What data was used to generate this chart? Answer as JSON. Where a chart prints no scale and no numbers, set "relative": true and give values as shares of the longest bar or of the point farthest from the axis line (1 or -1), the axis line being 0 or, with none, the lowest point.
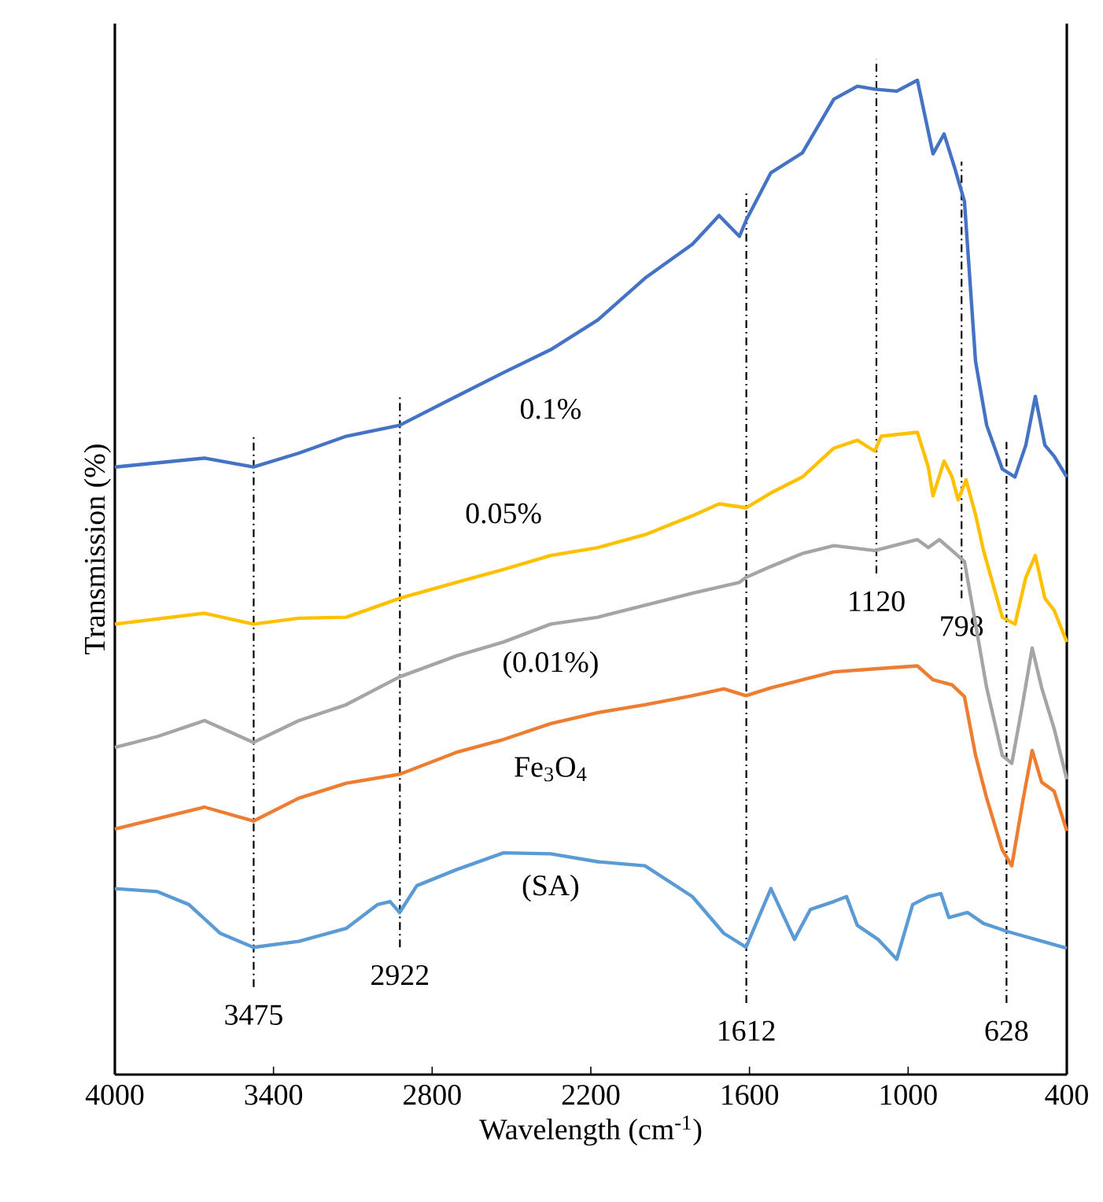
{
  "chart_data": {
    "type": "line",
    "relative": true,
    "xlabel": "Wavelength (cm$^{-1}$)",
    "ylabel": "Transmission (%)",
    "xlim": [
      4000,
      400
    ],
    "xticks": [
      4000,
      3400,
      2800,
      2200,
      1600,
      1000,
      400
    ],
    "tick_labels": "x",
    "series": [
      {
        "name": "0.1%",
        "color": "#4472c4",
        "x": [
          4000,
          3661,
          3476,
          3304,
          3125,
          2923,
          2709,
          2530,
          2352,
          2173,
          1995,
          1816,
          1715,
          1638,
          1613,
          1519,
          1400,
          1281,
          1192,
          1126,
          1043,
          965,
          906,
          864,
          823,
          787,
          745,
          703,
          644,
          596,
          555,
          519,
          483,
          448,
          400
        ],
        "values": [
          0.611,
          0.62,
          0.611,
          0.625,
          0.642,
          0.653,
          0.682,
          0.706,
          0.729,
          0.759,
          0.801,
          0.835,
          0.864,
          0.843,
          0.859,
          0.907,
          0.927,
          0.981,
          0.994,
          0.991,
          0.989,
          1.0,
          0.926,
          0.946,
          0.911,
          0.878,
          0.717,
          0.653,
          0.609,
          0.601,
          0.633,
          0.682,
          0.633,
          0.622,
          0.601
        ]
      },
      {
        "name": "0.05%",
        "color": "#ffc000",
        "x": [
          4000,
          3661,
          3476,
          3304,
          3125,
          2923,
          2709,
          2530,
          2352,
          2173,
          1995,
          1816,
          1715,
          1613,
          1519,
          1400,
          1281,
          1192,
          1126,
          1102,
          965,
          924,
          906,
          864,
          834,
          811,
          781,
          745,
          715,
          644,
          596,
          555,
          519,
          483,
          448,
          400
        ],
        "values": [
          0.453,
          0.464,
          0.453,
          0.459,
          0.46,
          0.479,
          0.495,
          0.508,
          0.522,
          0.53,
          0.543,
          0.562,
          0.574,
          0.57,
          0.585,
          0.601,
          0.63,
          0.638,
          0.627,
          0.642,
          0.646,
          0.611,
          0.582,
          0.617,
          0.601,
          0.578,
          0.598,
          0.563,
          0.527,
          0.46,
          0.453,
          0.5,
          0.522,
          0.479,
          0.467,
          0.435
        ]
      },
      {
        "name": "(0.01%)",
        "color": "#a5a5a5",
        "x": [
          4000,
          3839,
          3661,
          3476,
          3304,
          3125,
          2923,
          2709,
          2530,
          2352,
          2173,
          1995,
          1816,
          1638,
          1613,
          1519,
          1400,
          1281,
          1126,
          965,
          924,
          882,
          834,
          787,
          745,
          703,
          644,
          608,
          567,
          531,
          495,
          448,
          400
        ],
        "values": [
          0.329,
          0.34,
          0.356,
          0.334,
          0.356,
          0.372,
          0.4,
          0.421,
          0.435,
          0.453,
          0.46,
          0.472,
          0.484,
          0.495,
          0.5,
          0.511,
          0.524,
          0.532,
          0.527,
          0.538,
          0.53,
          0.538,
          0.527,
          0.516,
          0.453,
          0.389,
          0.321,
          0.313,
          0.373,
          0.429,
          0.389,
          0.348,
          0.297
        ]
      },
      {
        "name": "Fe$_{3}$O$_{4}$",
        "color": "#ed7d31",
        "x": [
          4000,
          3661,
          3476,
          3304,
          3125,
          2923,
          2709,
          2530,
          2352,
          2173,
          1995,
          1816,
          1697,
          1613,
          1519,
          1400,
          1281,
          1126,
          965,
          906,
          834,
          787,
          745,
          703,
          644,
          608,
          567,
          531,
          495,
          448,
          400
        ],
        "values": [
          0.247,
          0.269,
          0.255,
          0.278,
          0.293,
          0.302,
          0.324,
          0.337,
          0.353,
          0.364,
          0.372,
          0.381,
          0.388,
          0.381,
          0.389,
          0.397,
          0.405,
          0.408,
          0.411,
          0.397,
          0.392,
          0.38,
          0.321,
          0.278,
          0.226,
          0.21,
          0.274,
          0.326,
          0.294,
          0.285,
          0.245
        ]
      },
      {
        "name": "(SA)",
        "color": "#5b9bd5",
        "x": [
          4000,
          3839,
          3720,
          3601,
          3476,
          3304,
          3125,
          3006,
          2959,
          2923,
          2858,
          2709,
          2530,
          2352,
          2173,
          1995,
          1816,
          1697,
          1613,
          1519,
          1430,
          1370,
          1281,
          1233,
          1192,
          1114,
          1043,
          983,
          924,
          876,
          846,
          775,
          715,
          626,
          519,
          400
        ],
        "values": [
          0.187,
          0.184,
          0.171,
          0.142,
          0.128,
          0.134,
          0.147,
          0.171,
          0.174,
          0.163,
          0.19,
          0.206,
          0.223,
          0.222,
          0.214,
          0.21,
          0.179,
          0.142,
          0.128,
          0.187,
          0.136,
          0.166,
          0.174,
          0.179,
          0.15,
          0.136,
          0.116,
          0.171,
          0.179,
          0.182,
          0.158,
          0.163,
          0.152,
          0.144,
          0.136,
          0.127
        ]
      }
    ],
    "ref_lines": [
      {
        "axis": "x",
        "value": 3475,
        "label": "3475"
      },
      {
        "axis": "x",
        "value": 2922,
        "label": "2922"
      },
      {
        "axis": "x",
        "value": 1612,
        "label": "1612"
      },
      {
        "axis": "x",
        "value": 1120,
        "label": "1120"
      },
      {
        "axis": "x",
        "value": 798,
        "label": "798"
      },
      {
        "axis": "x",
        "value": 628,
        "label": "628"
      }
    ]
  }
}
